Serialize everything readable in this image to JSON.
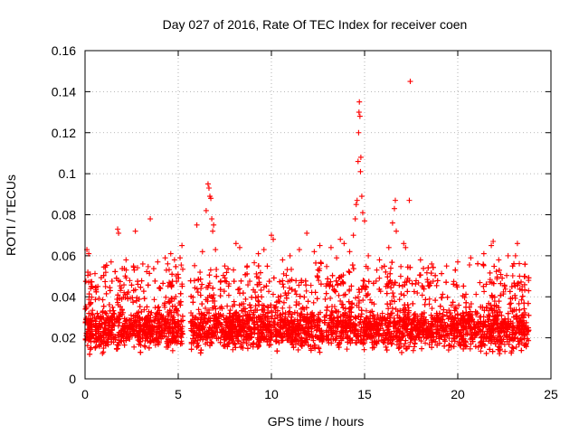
{
  "chart_data": {
    "type": "scatter",
    "title": "Day 027 of 2016, Rate Of TEC Index for receiver coen",
    "xlabel": "GPS time / hours",
    "ylabel": "ROTI / TECUs",
    "xlim": [
      0,
      25
    ],
    "ylim": [
      0,
      0.16
    ],
    "xticks": [
      0,
      5,
      10,
      15,
      20,
      25
    ],
    "xtick_labels": [
      "0",
      "5",
      "10",
      "15",
      "20",
      "25"
    ],
    "yticks": [
      0,
      0.02,
      0.04,
      0.06,
      0.08,
      0.1,
      0.12,
      0.14,
      0.16
    ],
    "ytick_labels": [
      "0",
      "0.02",
      "0.04",
      "0.06",
      "0.08",
      "0.1",
      "0.12",
      "0.14",
      "0.16"
    ],
    "grid": true,
    "marker": "+",
    "color": "#ff0000",
    "gaps": [
      [
        5.25,
        5.65
      ]
    ],
    "series": [
      {
        "name": "ROTI",
        "points": [
          [
            0.1,
            0.063
          ],
          [
            0.2,
            0.061
          ],
          [
            0.15,
            0.052
          ],
          [
            1.1,
            0.045
          ],
          [
            1.4,
            0.057
          ],
          [
            1.75,
            0.073
          ],
          [
            1.8,
            0.071
          ],
          [
            2.2,
            0.058
          ],
          [
            2.6,
            0.055
          ],
          [
            2.7,
            0.072
          ],
          [
            3.1,
            0.056
          ],
          [
            3.5,
            0.078
          ],
          [
            3.9,
            0.057
          ],
          [
            4.3,
            0.059
          ],
          [
            4.6,
            0.061
          ],
          [
            4.8,
            0.058
          ],
          [
            5.1,
            0.059
          ],
          [
            5.2,
            0.065
          ],
          [
            6.0,
            0.075
          ],
          [
            6.3,
            0.062
          ],
          [
            6.5,
            0.082
          ],
          [
            6.6,
            0.095
          ],
          [
            6.65,
            0.093
          ],
          [
            6.7,
            0.089
          ],
          [
            6.75,
            0.088
          ],
          [
            6.8,
            0.078
          ],
          [
            6.85,
            0.072
          ],
          [
            6.9,
            0.075
          ],
          [
            7.0,
            0.063
          ],
          [
            7.5,
            0.055
          ],
          [
            8.1,
            0.066
          ],
          [
            8.3,
            0.064
          ],
          [
            8.7,
            0.055
          ],
          [
            9.3,
            0.061
          ],
          [
            9.6,
            0.063
          ],
          [
            10.0,
            0.07
          ],
          [
            10.1,
            0.068
          ],
          [
            10.6,
            0.058
          ],
          [
            11.0,
            0.06
          ],
          [
            11.5,
            0.063
          ],
          [
            11.9,
            0.071
          ],
          [
            12.3,
            0.062
          ],
          [
            12.6,
            0.065
          ],
          [
            13.2,
            0.064
          ],
          [
            13.5,
            0.059
          ],
          [
            13.7,
            0.068
          ],
          [
            13.9,
            0.066
          ],
          [
            14.2,
            0.062
          ],
          [
            14.4,
            0.07
          ],
          [
            14.5,
            0.078
          ],
          [
            14.55,
            0.085
          ],
          [
            14.6,
            0.087
          ],
          [
            14.65,
            0.106
          ],
          [
            14.68,
            0.12
          ],
          [
            14.7,
            0.13
          ],
          [
            14.72,
            0.135
          ],
          [
            14.75,
            0.128
          ],
          [
            14.78,
            0.101
          ],
          [
            14.8,
            0.108
          ],
          [
            14.85,
            0.089
          ],
          [
            14.9,
            0.081
          ],
          [
            15.0,
            0.077
          ],
          [
            15.2,
            0.06
          ],
          [
            15.8,
            0.058
          ],
          [
            16.3,
            0.064
          ],
          [
            16.5,
            0.076
          ],
          [
            16.6,
            0.083
          ],
          [
            16.65,
            0.087
          ],
          [
            16.7,
            0.072
          ],
          [
            17.1,
            0.066
          ],
          [
            17.2,
            0.064
          ],
          [
            17.4,
            0.087
          ],
          [
            17.45,
            0.145
          ],
          [
            18.0,
            0.058
          ],
          [
            18.6,
            0.056
          ],
          [
            19.4,
            0.055
          ],
          [
            20.0,
            0.057
          ],
          [
            20.7,
            0.059
          ],
          [
            21.4,
            0.061
          ],
          [
            21.8,
            0.065
          ],
          [
            21.9,
            0.067
          ],
          [
            22.2,
            0.058
          ],
          [
            22.7,
            0.06
          ],
          [
            23.1,
            0.06
          ],
          [
            23.2,
            0.066
          ],
          [
            23.6,
            0.05
          ],
          [
            23.8,
            0.048
          ]
        ]
      }
    ]
  }
}
